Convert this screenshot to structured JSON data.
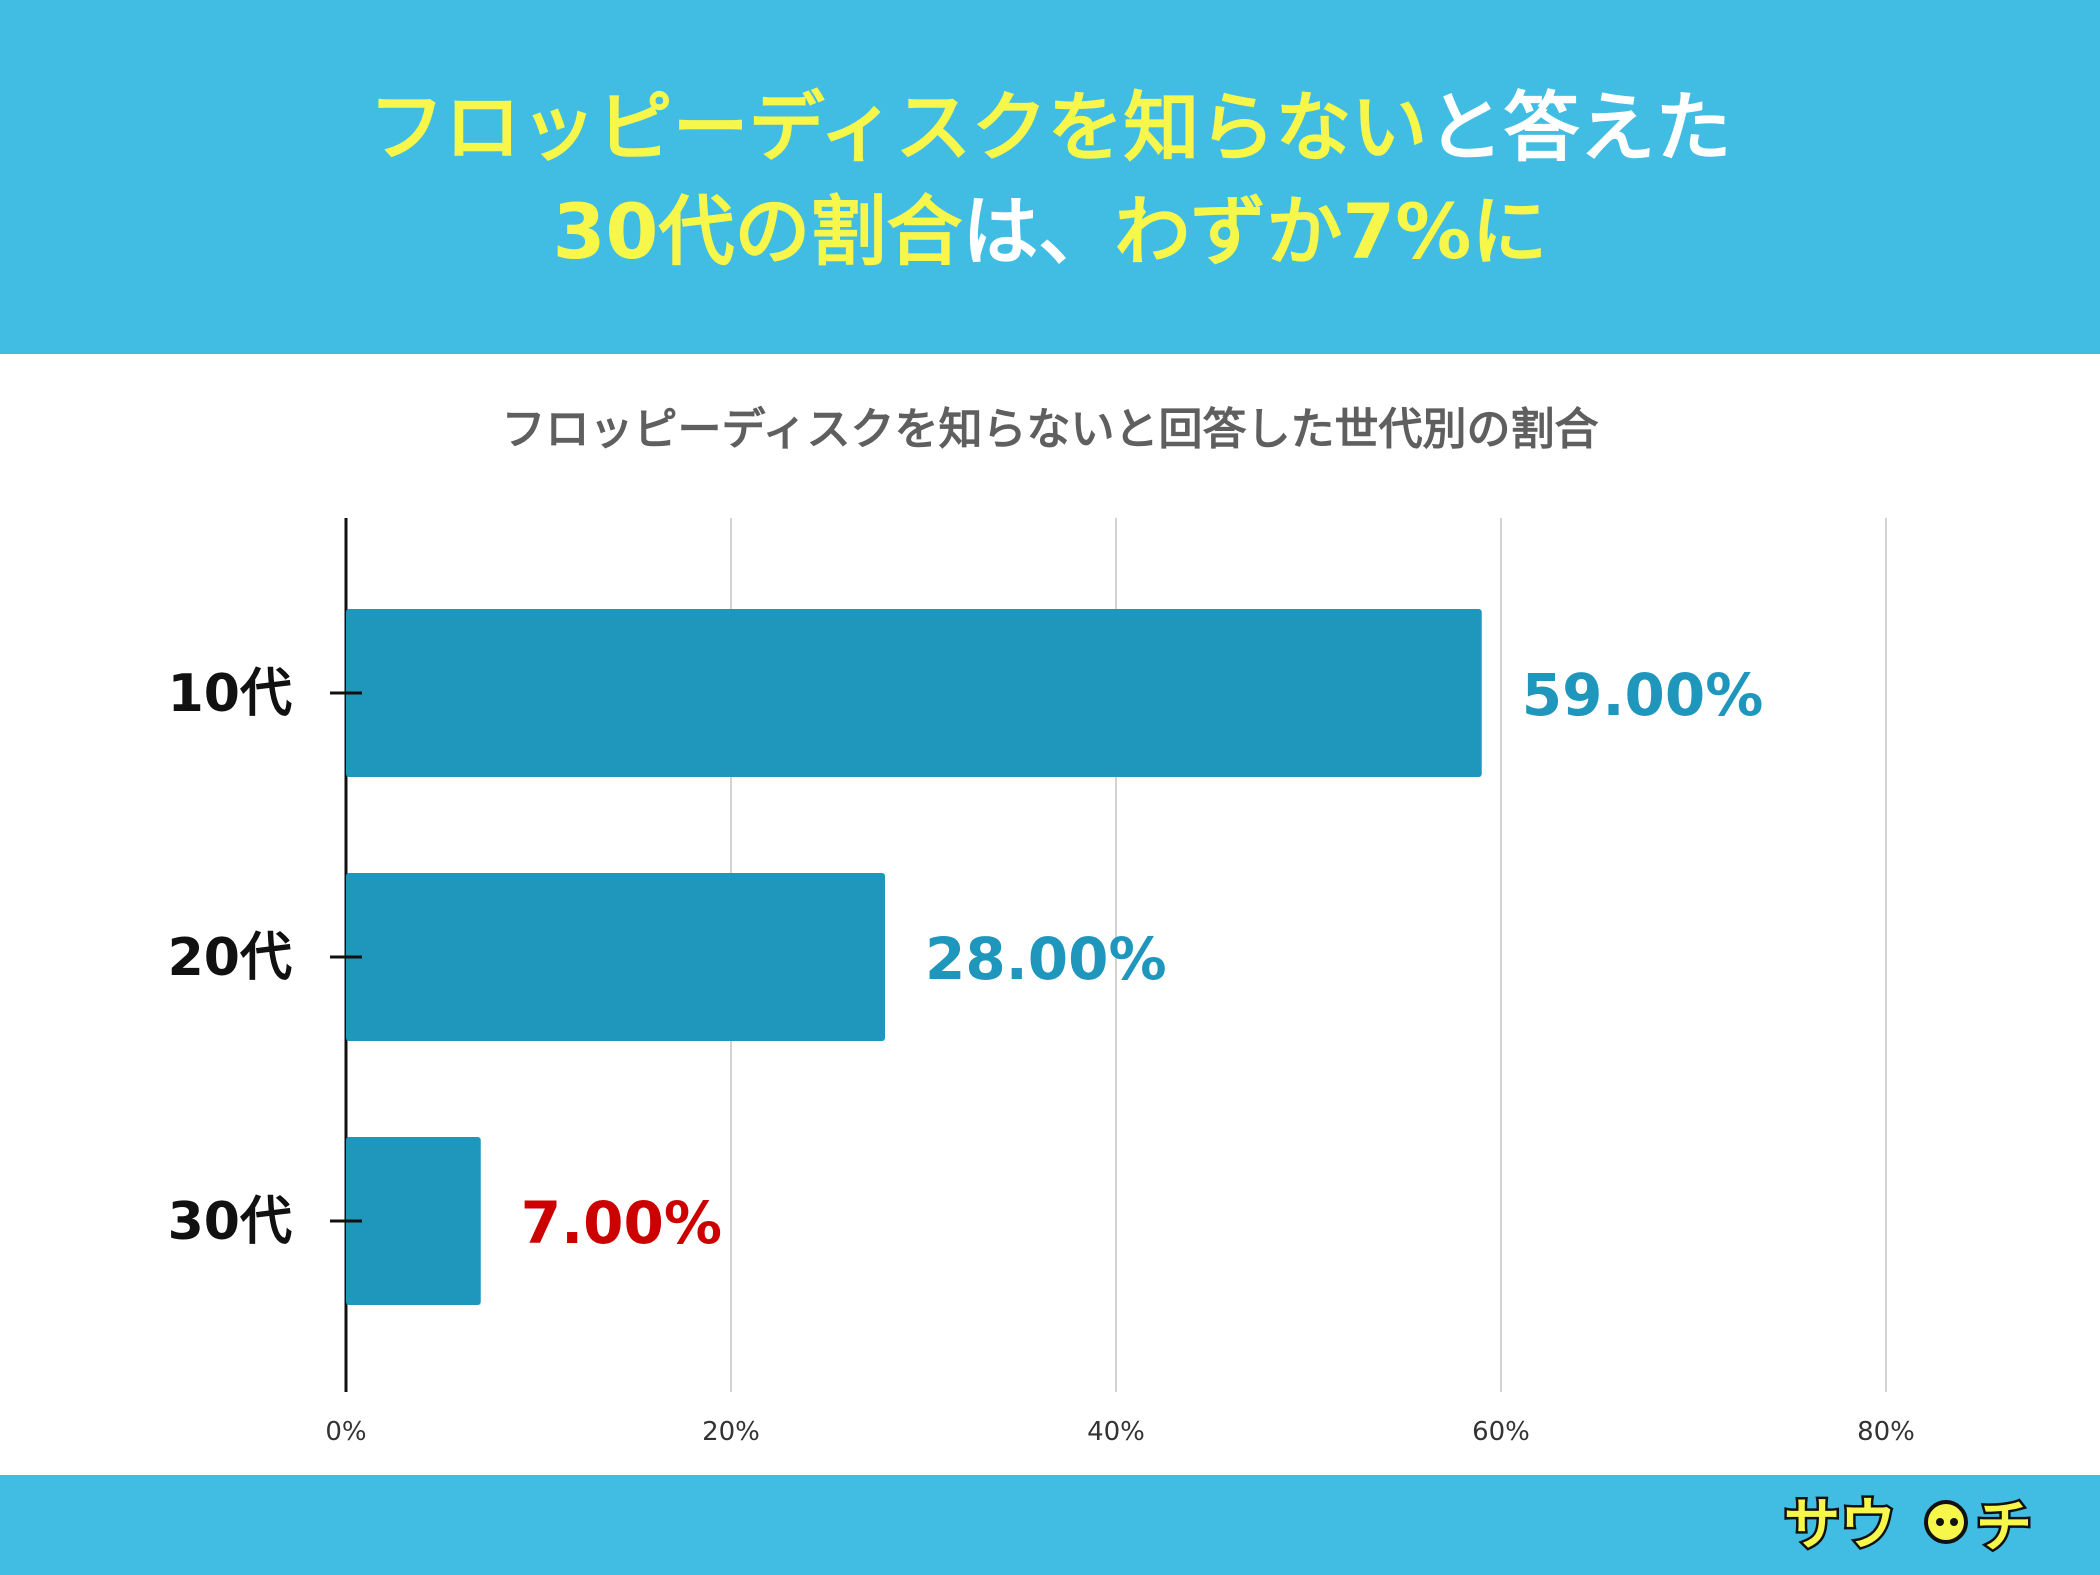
{
  "headline": {
    "line1_highlight": "フロッピーディスクを知らない",
    "line1_rest": "と答えた",
    "line2_highlight": "30代の割合",
    "line2_mid": "は、",
    "line2_end": "わずか7%に"
  },
  "colors": {
    "banner": "#41bde4",
    "headline_highlight": "#f6f74a",
    "headline_plain": "#ffffff",
    "bar": "#1f96bb",
    "value_label": "#1f96bb",
    "value_label_highlight": "#cc0000"
  },
  "chart_data": {
    "type": "bar",
    "orientation": "horizontal",
    "title": "フロッピーディスクを知らないと回答した世代別の割合",
    "categories": [
      "10代",
      "20代",
      "30代"
    ],
    "values": [
      59,
      28,
      7
    ],
    "data_labels": [
      "59.00%",
      "28.00%",
      "7.00%"
    ],
    "highlight_index": 2,
    "xlim": [
      0,
      80
    ],
    "xticks": [
      0,
      20,
      40,
      60,
      80
    ],
    "xtick_labels": [
      "0%",
      "20%",
      "40%",
      "60%",
      "80%"
    ],
    "xlabel": "",
    "ylabel": "",
    "grid": true,
    "legend": "none"
  },
  "logo_text": "サウチ"
}
